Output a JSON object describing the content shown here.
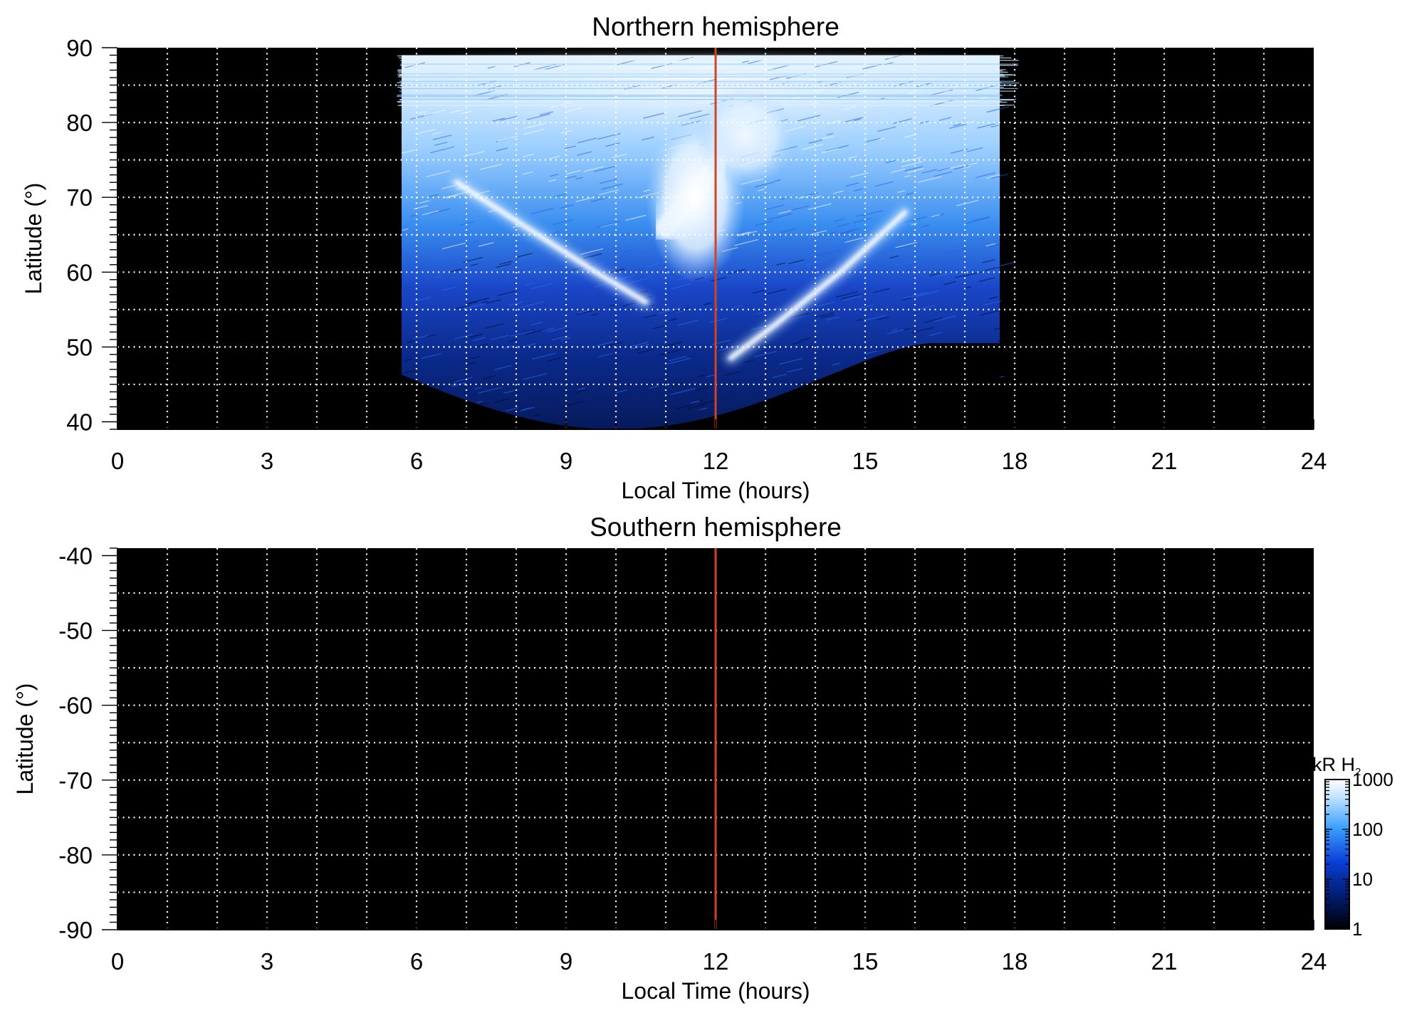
{
  "chart_data": [
    {
      "type": "heatmap",
      "title": "Northern hemisphere",
      "xlabel": "Local Time (hours)",
      "ylabel": "Latitude (°)",
      "xlim": [
        0,
        24
      ],
      "ylim": [
        39,
        90
      ],
      "xticks": [
        0,
        3,
        6,
        9,
        12,
        15,
        18,
        21,
        24
      ],
      "yticks": [
        40,
        50,
        60,
        70,
        80,
        90
      ],
      "x_grid": [
        1,
        2,
        3,
        4,
        5,
        6,
        7,
        8,
        9,
        10,
        11,
        12,
        13,
        14,
        15,
        16,
        17,
        18,
        19,
        20,
        21,
        22,
        23
      ],
      "y_grid": [
        45,
        50,
        55,
        60,
        65,
        70,
        75,
        80,
        85
      ],
      "grid": true,
      "reference_line": {
        "x": 12,
        "color": "#d4431f"
      },
      "coverage": {
        "local_time_range": [
          5.7,
          17.7
        ],
        "max_latitude": 89
      },
      "features": [
        {
          "name": "dawn arc",
          "points": [
            [
              6.8,
              72
            ],
            [
              8.2,
              66
            ],
            [
              9.6,
              60
            ],
            [
              10.6,
              56
            ]
          ]
        },
        {
          "name": "noon auroral spot",
          "points": [
            [
              11.0,
              66
            ],
            [
              11.5,
              70
            ],
            [
              12.0,
              74
            ]
          ]
        },
        {
          "name": "dusk arc",
          "points": [
            [
              12.3,
              48.5
            ],
            [
              13.2,
              53
            ],
            [
              14.5,
              60
            ],
            [
              15.8,
              68
            ]
          ]
        }
      ]
    },
    {
      "type": "heatmap",
      "title": "Southern hemisphere",
      "xlabel": "Local Time (hours)",
      "ylabel": "Latitude (°)",
      "xlim": [
        0,
        24
      ],
      "ylim": [
        -90,
        -39
      ],
      "xticks": [
        0,
        3,
        6,
        9,
        12,
        15,
        18,
        21,
        24
      ],
      "yticks": [
        -40,
        -50,
        -60,
        -70,
        -80,
        -90
      ],
      "x_grid": [
        1,
        2,
        3,
        4,
        5,
        6,
        7,
        8,
        9,
        10,
        11,
        12,
        13,
        14,
        15,
        16,
        17,
        18,
        19,
        20,
        21,
        22,
        23
      ],
      "y_grid": [
        -45,
        -50,
        -55,
        -60,
        -65,
        -70,
        -75,
        -80,
        -85
      ],
      "grid": true,
      "reference_line": {
        "x": 12,
        "color": "#d4431f"
      },
      "coverage": null
    }
  ],
  "colorbar": {
    "label_main": "kR H",
    "label_sub": "2",
    "scale": "log",
    "range": [
      1,
      1000
    ],
    "ticks": [
      "1000",
      "100",
      "10",
      "1"
    ],
    "colors": [
      "#000000",
      "#001a66",
      "#0a3fd6",
      "#3da0ff",
      "#bfe2ff",
      "#ffffff"
    ]
  }
}
